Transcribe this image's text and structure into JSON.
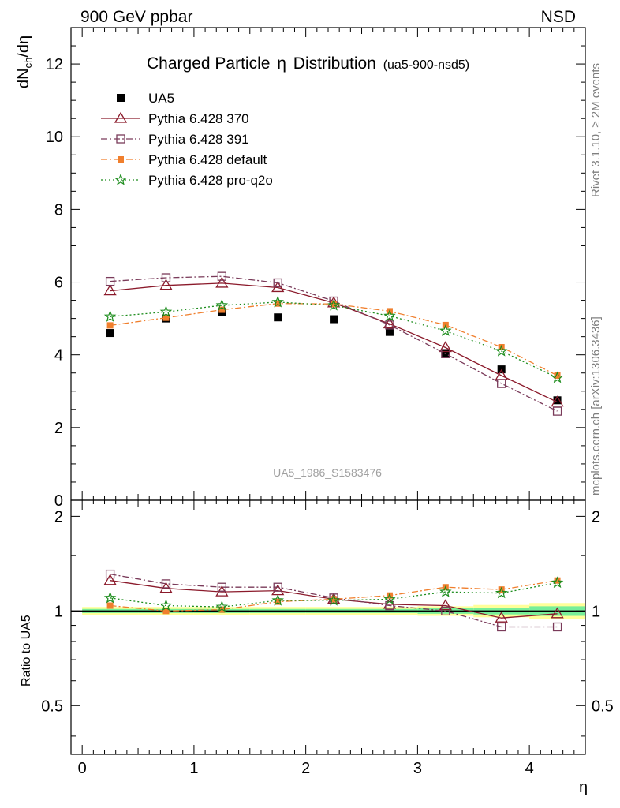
{
  "header": {
    "left": "900 GeV ppbar",
    "right": "NSD",
    "title": "Charged Particle",
    "title_symbol": "η",
    "title_suffix": "Distribution",
    "title_ref": "(ua5-900-nsd5)",
    "watermark": "UA5_1986_S1583476",
    "side_rivet": "Rivet 3.1.10, ≥ 2M events",
    "side_mcplots": "mcplots.cern.ch [arXiv:1306.3436]"
  },
  "chart_data": [
    {
      "type": "scatter",
      "ylabel": "dN_ch/dη",
      "ylim": [
        0,
        13
      ],
      "yticks": [
        "0",
        "2",
        "4",
        "6",
        "8",
        "10",
        "12"
      ],
      "x": [
        0.25,
        0.75,
        1.25,
        1.75,
        2.25,
        2.75,
        3.25,
        3.75,
        4.25
      ],
      "series": [
        {
          "name": "UA5",
          "color": "#000000",
          "marker": "filled-square",
          "line": "none",
          "values": [
            4.6,
            5.0,
            5.18,
            5.03,
            4.98,
            4.63,
            4.05,
            3.6,
            2.75
          ]
        },
        {
          "name": "Pythia 6.428 370",
          "color": "#8b1a2b",
          "marker": "open-triangle",
          "line": "solid",
          "values": [
            5.76,
            5.91,
            5.97,
            5.85,
            5.43,
            4.85,
            4.2,
            3.43,
            2.7
          ]
        },
        {
          "name": "Pythia 6.428 391",
          "color": "#7a3b5a",
          "marker": "open-square",
          "line": "dashdot",
          "values": [
            6.02,
            6.12,
            6.16,
            5.98,
            5.48,
            4.82,
            4.03,
            3.21,
            2.45
          ]
        },
        {
          "name": "Pythia 6.428 default",
          "color": "#f07f2d",
          "marker": "filled-square-small",
          "line": "dashdot",
          "values": [
            4.81,
            5.02,
            5.24,
            5.41,
            5.4,
            5.2,
            4.82,
            4.21,
            3.43
          ]
        },
        {
          "name": "Pythia 6.428 pro-q2o",
          "color": "#1c8c1c",
          "marker": "star",
          "line": "dotted",
          "values": [
            5.05,
            5.18,
            5.36,
            5.45,
            5.36,
            5.07,
            4.66,
            4.1,
            3.37
          ]
        }
      ]
    },
    {
      "type": "scatter",
      "ylabel": "Ratio to UA5",
      "xlabel": "η",
      "ylim": [
        0.35,
        2.25
      ],
      "yticks": [
        "0.5",
        "1",
        "2"
      ],
      "xticks": [
        "0",
        "1",
        "2",
        "3",
        "4"
      ],
      "xlim": [
        -0.1,
        4.5
      ],
      "x": [
        0.25,
        0.75,
        1.25,
        1.75,
        2.25,
        2.75,
        3.25,
        3.75,
        4.25
      ],
      "bands": {
        "yellow_halfwidth": [
          0.03,
          0.03,
          0.03,
          0.03,
          0.03,
          0.03,
          0.035,
          0.045,
          0.06
        ],
        "green_halfwidth": [
          0.015,
          0.015,
          0.015,
          0.015,
          0.015,
          0.015,
          0.02,
          0.025,
          0.035
        ]
      },
      "series": [
        {
          "name": "Pythia 6.428 370",
          "values": [
            1.25,
            1.18,
            1.15,
            1.16,
            1.09,
            1.05,
            1.04,
            0.95,
            0.98
          ]
        },
        {
          "name": "Pythia 6.428 391",
          "values": [
            1.31,
            1.22,
            1.19,
            1.19,
            1.1,
            1.04,
            1.0,
            0.89,
            0.89
          ]
        },
        {
          "name": "Pythia 6.428 default",
          "values": [
            1.04,
            1.0,
            1.01,
            1.07,
            1.09,
            1.12,
            1.19,
            1.17,
            1.25
          ]
        },
        {
          "name": "Pythia 6.428 pro-q2o",
          "values": [
            1.1,
            1.04,
            1.03,
            1.08,
            1.08,
            1.09,
            1.15,
            1.14,
            1.23
          ]
        }
      ]
    }
  ]
}
